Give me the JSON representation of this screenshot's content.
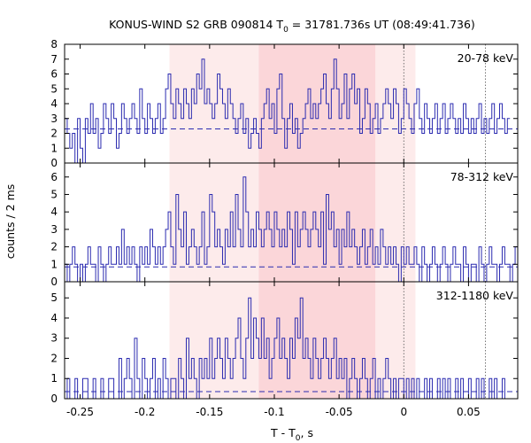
{
  "chart_data": {
    "type": "line",
    "title_main": "KONUS-WIND S2 GRB 090814 T",
    "title_sub": "0",
    "title_rest": " = 31781.736s UT (08:49:41.736)",
    "xlabel_main": "T - T",
    "xlabel_sub": "0",
    "xlabel_rest": ", s",
    "ylabel": "counts / 2 ms",
    "xlim": [
      -0.262,
      0.088
    ],
    "x_ticks": [
      -0.25,
      -0.2,
      -0.15,
      -0.1,
      -0.05,
      0,
      0.05
    ],
    "x_tick_labels": [
      "-0.25",
      "-0.2",
      "-0.15",
      "-0.1",
      "-0.05",
      "0",
      "0.05"
    ],
    "bin_width": 0.002,
    "shade_outer": [
      -0.181,
      0.009
    ],
    "shade_inner": [
      -0.112,
      -0.022
    ],
    "vlines": [
      0,
      0.063
    ],
    "colors": {
      "line": "#2b2bb0",
      "shade_outer": "#fdebeb",
      "shade_inner": "#fbd6d9",
      "frame": "#000000"
    },
    "panels": [
      {
        "label": "20-78 keV",
        "ylim": [
          0,
          8
        ],
        "y_ticks": [
          0,
          1,
          2,
          3,
          4,
          5,
          6,
          7,
          8
        ],
        "background": 2.3,
        "values": [
          3,
          2,
          1,
          2,
          0,
          3,
          1,
          0,
          3,
          2,
          4,
          2,
          3,
          1,
          2,
          4,
          3,
          2,
          4,
          3,
          1,
          2,
          4,
          3,
          2,
          3,
          4,
          3,
          2,
          5,
          3,
          2,
          4,
          3,
          2,
          3,
          4,
          2,
          3,
          5,
          6,
          4,
          3,
          5,
          4,
          3,
          5,
          4,
          3,
          5,
          4,
          6,
          5,
          7,
          4,
          5,
          4,
          3,
          4,
          6,
          5,
          4,
          3,
          5,
          4,
          3,
          2,
          3,
          4,
          2,
          3,
          1,
          2,
          3,
          2,
          1,
          3,
          4,
          5,
          3,
          4,
          2,
          5,
          6,
          3,
          1,
          3,
          4,
          2,
          3,
          1,
          2,
          3,
          4,
          5,
          3,
          4,
          3,
          4,
          5,
          6,
          4,
          3,
          5,
          7,
          5,
          3,
          4,
          6,
          3,
          5,
          6,
          4,
          5,
          2,
          3,
          5,
          4,
          2,
          3,
          4,
          2,
          3,
          4,
          5,
          4,
          3,
          5,
          4,
          2,
          3,
          5,
          4,
          3,
          2,
          4,
          5,
          3,
          2,
          4,
          3,
          2,
          3,
          4,
          2,
          3,
          4,
          2,
          3,
          4,
          3,
          2,
          3,
          2,
          4,
          3,
          2,
          3,
          2,
          3,
          4,
          2,
          3,
          2,
          3,
          4,
          2,
          3,
          4,
          3,
          2,
          3
        ]
      },
      {
        "label": "78-312 keV",
        "ylim": [
          0,
          6.8
        ],
        "y_ticks": [
          0,
          1,
          2,
          3,
          4,
          5,
          6
        ],
        "background": 0.85,
        "values": [
          1,
          0,
          1,
          2,
          1,
          0,
          1,
          0,
          1,
          2,
          1,
          1,
          0,
          2,
          1,
          0,
          1,
          2,
          1,
          1,
          2,
          1,
          3,
          1,
          2,
          1,
          2,
          1,
          0,
          2,
          1,
          2,
          1,
          3,
          2,
          1,
          2,
          1,
          2,
          3,
          4,
          2,
          1,
          5,
          3,
          2,
          4,
          1,
          2,
          3,
          2,
          1,
          2,
          4,
          1,
          2,
          5,
          4,
          2,
          3,
          2,
          1,
          3,
          2,
          4,
          2,
          5,
          3,
          2,
          6,
          4,
          2,
          3,
          2,
          4,
          3,
          2,
          3,
          4,
          3,
          2,
          4,
          3,
          2,
          3,
          2,
          4,
          3,
          1,
          4,
          2,
          3,
          4,
          3,
          2,
          3,
          4,
          3,
          2,
          4,
          1,
          5,
          3,
          4,
          2,
          3,
          1,
          3,
          2,
          4,
          2,
          3,
          2,
          1,
          2,
          3,
          1,
          2,
          3,
          1,
          2,
          1,
          3,
          2,
          1,
          2,
          1,
          2,
          1,
          0,
          2,
          1,
          2,
          1,
          1,
          2,
          1,
          0,
          2,
          1,
          0,
          1,
          2,
          1,
          0,
          1,
          2,
          1,
          0,
          1,
          2,
          1,
          1,
          0,
          2,
          1,
          0,
          1,
          1,
          0,
          2,
          1,
          0,
          1,
          2,
          1,
          1,
          0,
          1,
          2,
          1,
          1,
          0,
          1,
          2
        ]
      },
      {
        "label": "312-1180 keV",
        "ylim": [
          0,
          5.8
        ],
        "y_ticks": [
          0,
          1,
          2,
          3,
          4,
          5
        ],
        "background": 0.35,
        "values": [
          0,
          1,
          0,
          0,
          1,
          0,
          0,
          1,
          1,
          0,
          0,
          1,
          0,
          0,
          1,
          0,
          0,
          1,
          1,
          0,
          0,
          2,
          0,
          1,
          2,
          1,
          0,
          3,
          1,
          0,
          2,
          1,
          0,
          1,
          2,
          0,
          1,
          0,
          2,
          1,
          0,
          1,
          1,
          0,
          2,
          1,
          0,
          3,
          1,
          2,
          1,
          0,
          2,
          1,
          2,
          1,
          3,
          1,
          2,
          3,
          2,
          1,
          3,
          2,
          1,
          2,
          3,
          4,
          2,
          1,
          3,
          5,
          2,
          4,
          3,
          2,
          4,
          2,
          3,
          1,
          2,
          3,
          4,
          2,
          3,
          2,
          1,
          3,
          2,
          4,
          3,
          5,
          2,
          3,
          2,
          1,
          3,
          2,
          1,
          2,
          3,
          2,
          1,
          2,
          3,
          1,
          2,
          1,
          2,
          0,
          1,
          2,
          1,
          0,
          1,
          2,
          1,
          0,
          1,
          2,
          0,
          1,
          0,
          1,
          2,
          1,
          0,
          1,
          0,
          1,
          1,
          0,
          1,
          0,
          1,
          0,
          1,
          0,
          0,
          1,
          0,
          1,
          0,
          0,
          1,
          0,
          1,
          0,
          1,
          0,
          0,
          1,
          0,
          1,
          0,
          0,
          1,
          0,
          0,
          1,
          0,
          1,
          0,
          0,
          1,
          0,
          1,
          0,
          0,
          1,
          0
        ]
      }
    ]
  }
}
